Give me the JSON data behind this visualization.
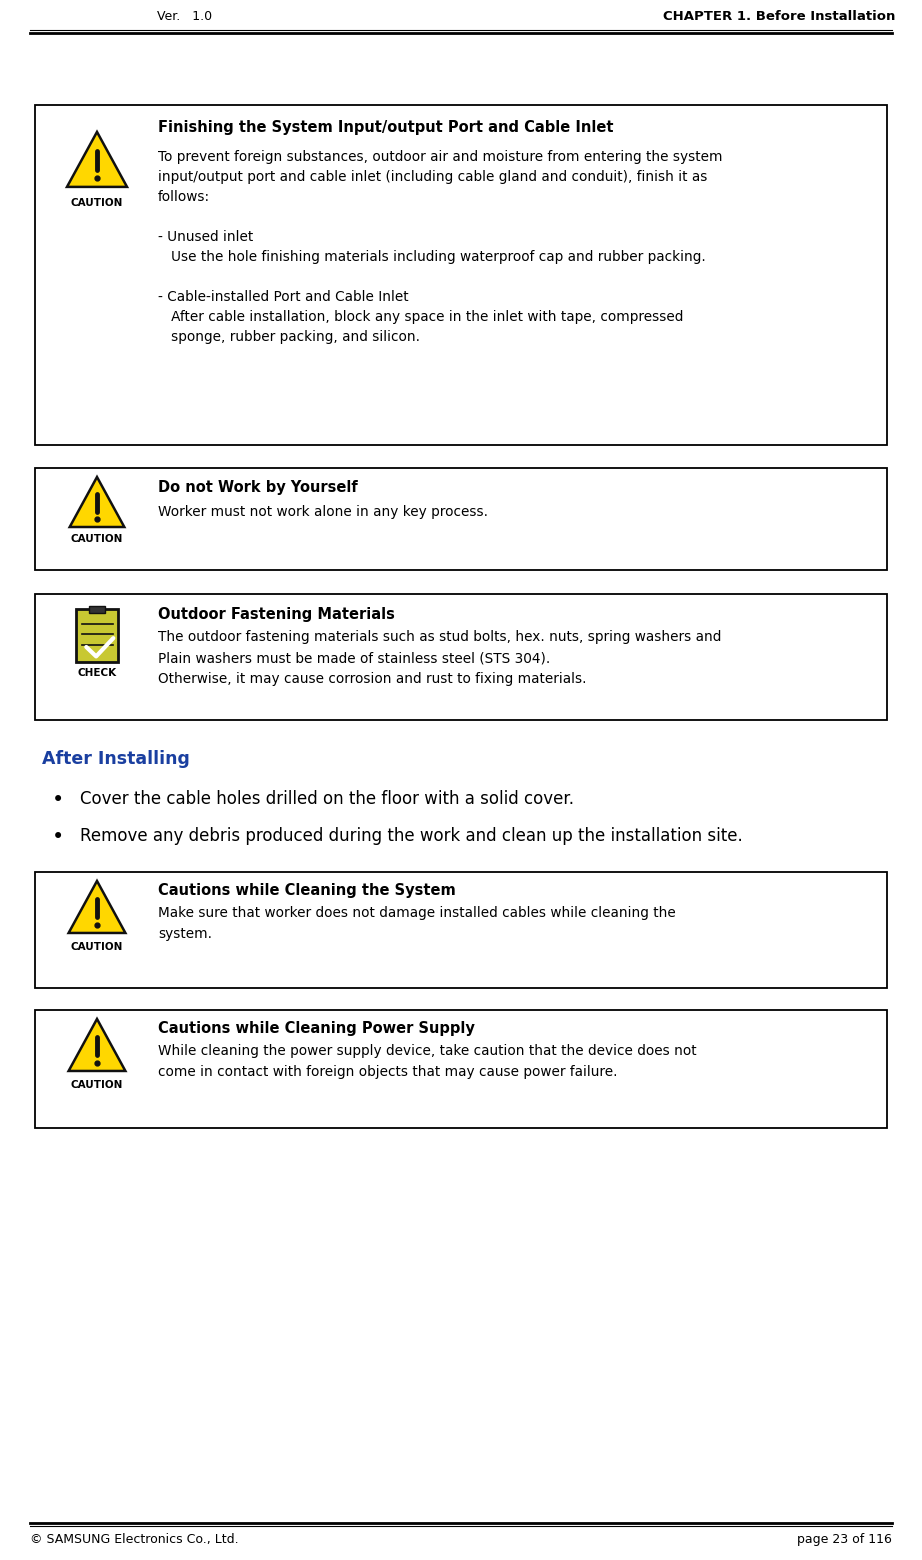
{
  "ver_text": "Ver.   1.0",
  "chapter_text": "CHAPTER 1. Before Installation",
  "footer_left": "© SAMSUNG Electronics Co., Ltd.",
  "footer_right": "page 23 of 116",
  "after_installing_title": "After Installing",
  "bullet1": "Cover the cable holes drilled on the floor with a solid cover.",
  "bullet2": "Remove any debris produced during the work and clean up the installation site.",
  "box1": {
    "icon_type": "caution",
    "title": "Finishing the System Input/output Port and Cable Inlet",
    "lines": [
      "To prevent foreign substances, outdoor air and moisture from entering the system",
      "input/output port and cable inlet (including cable gland and conduit), finish it as",
      "follows:",
      "",
      "- Unused inlet",
      "   Use the hole finishing materials including waterproof cap and rubber packing.",
      "",
      "- Cable-installed Port and Cable Inlet",
      "   After cable installation, block any space in the inlet with tape, compressed",
      "   sponge, rubber packing, and silicon."
    ]
  },
  "box2": {
    "icon_type": "caution",
    "title": "Do not Work by Yourself",
    "lines": [
      "Worker must not work alone in any key process."
    ]
  },
  "box3": {
    "icon_type": "check",
    "title": "Outdoor Fastening Materials",
    "lines": [
      "The outdoor fastening materials such as stud bolts, hex. nuts, spring washers and",
      "Plain washers must be made of stainless steel (STS 304).",
      "Otherwise, it may cause corrosion and rust to fixing materials."
    ]
  },
  "box4": {
    "icon_type": "caution",
    "title": "Cautions while Cleaning the System",
    "lines": [
      "Make sure that worker does not damage installed cables while cleaning the",
      "system."
    ]
  },
  "box5": {
    "icon_type": "caution",
    "title": "Cautions while Cleaning Power Supply",
    "lines": [
      "While cleaning the power supply device, take caution that the device does not",
      "come in contact with foreign objects that may cause power failure."
    ]
  },
  "bg_color": "#ffffff",
  "box_border_color": "#000000",
  "text_color": "#000000",
  "header_line_color": "#000000",
  "after_installing_color": "#1a3fa0",
  "caution_yellow": "#FFD700",
  "check_green": "#c8c832",
  "check_bg": "#b8b820"
}
